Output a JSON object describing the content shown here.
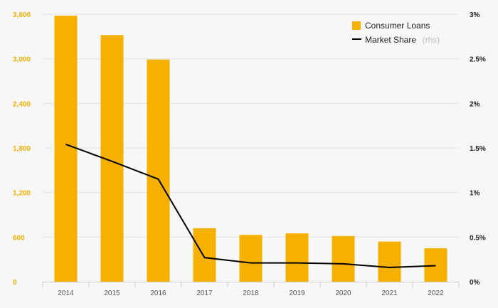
{
  "chart_data": {
    "type": "bar",
    "categories": [
      "2014",
      "2015",
      "2016",
      "2017",
      "2018",
      "2019",
      "2020",
      "2021",
      "2022"
    ],
    "series": [
      {
        "name": "Consumer Loans",
        "type": "bar",
        "axis": "left",
        "color": "#f6b000",
        "values": [
          3580,
          3320,
          2990,
          720,
          630,
          650,
          615,
          540,
          450
        ]
      },
      {
        "name": "Market Share",
        "legend_note": "(rhs)",
        "type": "line",
        "axis": "right",
        "color": "#000000",
        "values": [
          1.54,
          1.35,
          1.15,
          0.27,
          0.21,
          0.21,
          0.2,
          0.16,
          0.18
        ]
      }
    ],
    "y_left": {
      "lim": [
        0,
        3600
      ],
      "ticks": [
        0,
        600,
        1200,
        1800,
        2400,
        3000,
        3600
      ],
      "tick_labels": [
        "0",
        "600",
        "1,200",
        "1,800",
        "2,400",
        "3,000",
        "3,600"
      ]
    },
    "y_right": {
      "lim": [
        0,
        3
      ],
      "ticks": [
        0,
        0.5,
        1,
        1.5,
        2,
        2.5,
        3
      ],
      "tick_labels": [
        "0%",
        "0.5%",
        "1%",
        "1.5%",
        "2%",
        "2.5%",
        "3%"
      ]
    },
    "grid": true,
    "legend_position": "top-right"
  }
}
